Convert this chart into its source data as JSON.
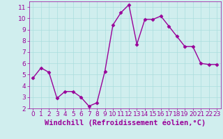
{
  "x": [
    0,
    1,
    2,
    3,
    4,
    5,
    6,
    7,
    8,
    9,
    10,
    11,
    12,
    13,
    14,
    15,
    16,
    17,
    18,
    19,
    20,
    21,
    22,
    23
  ],
  "y": [
    4.7,
    5.6,
    5.2,
    2.9,
    3.5,
    3.5,
    3.0,
    2.2,
    2.5,
    5.3,
    9.4,
    10.5,
    11.2,
    7.7,
    9.9,
    9.9,
    10.2,
    9.3,
    8.4,
    7.5,
    7.5,
    6.0,
    5.9,
    5.9
  ],
  "line_color": "#990099",
  "marker": "D",
  "marker_size": 2.5,
  "linewidth": 1.0,
  "xlabel": "Windchill (Refroidissement éolien,°C)",
  "xlabel_fontsize": 7.5,
  "xlabel_color": "#990099",
  "xlim": [
    -0.5,
    23.5
  ],
  "ylim": [
    2,
    11.5
  ],
  "yticks": [
    2,
    3,
    4,
    5,
    6,
    7,
    8,
    9,
    10,
    11
  ],
  "xticks": [
    0,
    1,
    2,
    3,
    4,
    5,
    6,
    7,
    8,
    9,
    10,
    11,
    12,
    13,
    14,
    15,
    16,
    17,
    18,
    19,
    20,
    21,
    22,
    23
  ],
  "grid_color": "#aadddd",
  "bg_color": "#d0eeee",
  "tick_fontsize": 6.5,
  "tick_color": "#990099",
  "spine_color": "#990099"
}
